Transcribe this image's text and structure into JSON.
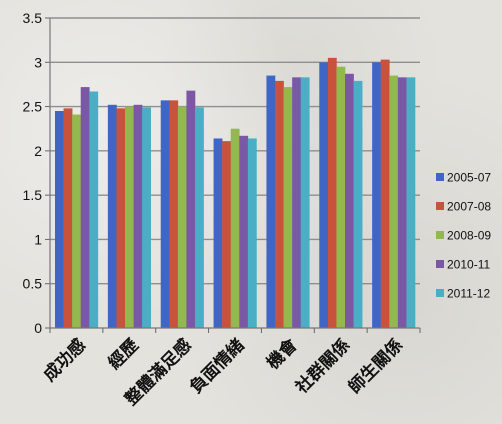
{
  "chart_data": {
    "type": "bar",
    "title": "",
    "xlabel": "",
    "ylabel": "",
    "ylim": [
      0,
      3.5
    ],
    "yticks": [
      "0",
      "0.5",
      "1",
      "1.5",
      "2",
      "2.5",
      "3",
      "3.5"
    ],
    "grid": true,
    "legend_position": "right",
    "categories": [
      "成功感",
      "經歷",
      "整體滿足感",
      "負面情緒",
      "機會",
      "社群關係",
      "師生關係"
    ],
    "series": [
      {
        "name": "2005-07",
        "color": "#3f66c4",
        "values": [
          2.45,
          2.52,
          2.57,
          2.14,
          2.85,
          3.0,
          3.0
        ]
      },
      {
        "name": "2007-08",
        "color": "#c9523c",
        "values": [
          2.48,
          2.48,
          2.57,
          2.11,
          2.79,
          3.05,
          3.03
        ]
      },
      {
        "name": "2008-09",
        "color": "#93b84e",
        "values": [
          2.41,
          2.5,
          2.5,
          2.25,
          2.72,
          2.95,
          2.85
        ]
      },
      {
        "name": "2010-11",
        "color": "#7b58a6",
        "values": [
          2.72,
          2.52,
          2.68,
          2.17,
          2.83,
          2.87,
          2.83
        ]
      },
      {
        "name": "2011-12",
        "color": "#4aaec4",
        "values": [
          2.67,
          2.49,
          2.49,
          2.14,
          2.83,
          2.79,
          2.83
        ]
      }
    ]
  }
}
